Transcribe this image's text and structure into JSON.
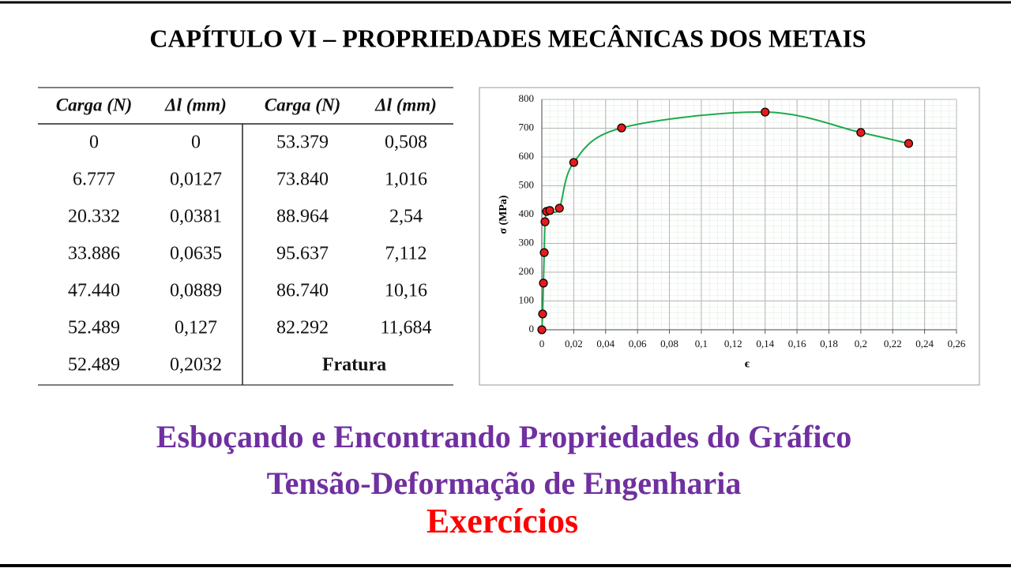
{
  "header": {
    "title": "CAPÍTULO VI – PROPRIEDADES MECÂNICAS DOS METAIS"
  },
  "table": {
    "headers": [
      "Carga (N)",
      "Δl (mm)",
      "Carga (N)",
      "Δl (mm)"
    ],
    "rows": [
      [
        "0",
        "0",
        "53.379",
        "0,508"
      ],
      [
        "6.777",
        "0,0127",
        "73.840",
        "1,016"
      ],
      [
        "20.332",
        "0,0381",
        "88.964",
        "2,54"
      ],
      [
        "33.886",
        "0,0635",
        "95.637",
        "7,112"
      ],
      [
        "47.440",
        "0,0889",
        "86.740",
        "10,16"
      ],
      [
        "52.489",
        "0,127",
        "82.292",
        "11,684"
      ],
      [
        "52.489",
        "0,2032",
        "Fratura"
      ]
    ]
  },
  "chart_data": {
    "type": "scatter",
    "x_label": "ϵ",
    "y_label": "σ (MPa)",
    "x": [
      0,
      0.0005,
      0.001,
      0.0015,
      0.002,
      0.003,
      0.005,
      0.011,
      0.02,
      0.05,
      0.14,
      0.2,
      0.23
    ],
    "values": [
      0,
      55,
      162,
      268,
      375,
      411,
      414,
      422,
      581,
      701,
      756,
      685,
      647
    ],
    "color": "#e41a1c",
    "line_color": "#1faa4f",
    "xlim": [
      0,
      0.26
    ],
    "xticks": [
      0,
      {
        "value": 0.02,
        "label": "0,02"
      },
      {
        "value": 0.04,
        "label": "0,04"
      },
      {
        "value": 0.06,
        "label": "0,06"
      },
      {
        "value": 0.08,
        "label": "0,08"
      },
      {
        "value": 0.1,
        "label": "0,1"
      },
      {
        "value": 0.12,
        "label": "0,12"
      },
      {
        "value": 0.14,
        "label": "0,14"
      },
      {
        "value": 0.16,
        "label": "0,16"
      },
      {
        "value": 0.18,
        "label": "0,18"
      },
      {
        "value": 0.2,
        "label": "0,2"
      },
      {
        "value": 0.22,
        "label": "0,22"
      },
      {
        "value": 0.24,
        "label": "0,24"
      },
      {
        "value": 0.26,
        "label": "0,26"
      }
    ],
    "ylim": [
      0,
      800
    ],
    "yticks": [
      0,
      100,
      200,
      300,
      400,
      500,
      600,
      700,
      800
    ],
    "grid": true
  },
  "footer": {
    "line1": "Esboçando e Encontrando Propriedades do Gráfico",
    "line2": "Tensão-Deformação de Engenharia",
    "line3": "Exercícios"
  }
}
